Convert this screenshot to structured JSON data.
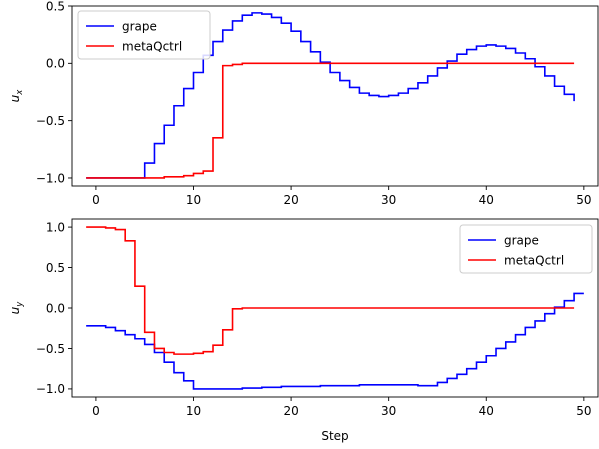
{
  "chart_data": [
    {
      "type": "line",
      "step": true,
      "ylabel": "u_x",
      "ylabel_main": "u",
      "ylabel_sub": "x",
      "xlabel": "",
      "xlim": [
        -2.45,
        51.45
      ],
      "ylim": [
        -1.07,
        0.5
      ],
      "xticks": [
        0,
        10,
        20,
        30,
        40,
        50
      ],
      "yticks": [
        -1.0,
        -0.5,
        0.0,
        0.5
      ],
      "ytick_labels": [
        "−1.0",
        "−0.5",
        "0.0",
        "0.5"
      ],
      "legend": "upper-left",
      "series": [
        {
          "name": "grape",
          "color": "#0000ff",
          "values": [
            -1.0,
            -1.0,
            -1.0,
            -1.0,
            -1.0,
            -1.0,
            -0.87,
            -0.7,
            -0.54,
            -0.37,
            -0.22,
            -0.08,
            0.07,
            0.19,
            0.29,
            0.37,
            0.42,
            0.44,
            0.43,
            0.4,
            0.35,
            0.28,
            0.19,
            0.1,
            0.01,
            -0.08,
            -0.15,
            -0.21,
            -0.26,
            -0.28,
            -0.29,
            -0.28,
            -0.26,
            -0.22,
            -0.17,
            -0.11,
            -0.04,
            0.02,
            0.08,
            0.12,
            0.15,
            0.16,
            0.15,
            0.13,
            0.09,
            0.04,
            -0.03,
            -0.11,
            -0.2,
            -0.27,
            -0.33
          ]
        },
        {
          "name": "metaQctrl",
          "color": "#ff0000",
          "values": [
            -1.0,
            -1.0,
            -1.0,
            -1.0,
            -1.0,
            -1.0,
            -1.0,
            -1.0,
            -0.99,
            -0.99,
            -0.98,
            -0.96,
            -0.94,
            -0.65,
            -0.02,
            -0.01,
            0.0,
            0.0,
            0.0,
            0.0,
            0.0,
            0.0,
            0.0,
            0.0,
            0.0,
            0.0,
            0.0,
            0.0,
            0.0,
            0.0,
            0.0,
            0.0,
            0.0,
            0.0,
            0.0,
            0.0,
            0.0,
            0.0,
            0.0,
            0.0,
            0.0,
            0.0,
            0.0,
            0.0,
            0.0,
            0.0,
            0.0,
            0.0,
            0.0,
            0.0,
            0.0
          ]
        }
      ]
    },
    {
      "type": "line",
      "step": true,
      "ylabel": "u_y",
      "ylabel_main": "u",
      "ylabel_sub": "y",
      "xlabel": "Step",
      "xlim": [
        -2.45,
        51.45
      ],
      "ylim": [
        -1.1,
        1.1
      ],
      "xticks": [
        0,
        10,
        20,
        30,
        40,
        50
      ],
      "yticks": [
        -1.0,
        -0.5,
        0.0,
        0.5,
        1.0
      ],
      "ytick_labels": [
        "−1.0",
        "−0.5",
        "0.0",
        "0.5",
        "1.0"
      ],
      "legend": "upper-right",
      "series": [
        {
          "name": "grape",
          "color": "#0000ff",
          "values": [
            -0.22,
            -0.22,
            -0.24,
            -0.28,
            -0.33,
            -0.38,
            -0.45,
            -0.55,
            -0.67,
            -0.8,
            -0.9,
            -1.0,
            -1.0,
            -1.0,
            -1.0,
            -1.0,
            -0.99,
            -0.99,
            -0.98,
            -0.98,
            -0.97,
            -0.97,
            -0.97,
            -0.97,
            -0.96,
            -0.96,
            -0.96,
            -0.96,
            -0.95,
            -0.95,
            -0.95,
            -0.95,
            -0.95,
            -0.95,
            -0.96,
            -0.96,
            -0.92,
            -0.87,
            -0.82,
            -0.75,
            -0.67,
            -0.59,
            -0.5,
            -0.42,
            -0.33,
            -0.24,
            -0.16,
            -0.07,
            0.01,
            0.09,
            0.18,
            0.18
          ]
        },
        {
          "name": "metaQctrl",
          "color": "#ff0000",
          "values": [
            1.0,
            1.0,
            0.99,
            0.97,
            0.83,
            0.27,
            -0.3,
            -0.5,
            -0.55,
            -0.57,
            -0.57,
            -0.56,
            -0.54,
            -0.46,
            -0.27,
            -0.01,
            0.0,
            0.0,
            0.0,
            0.0,
            0.0,
            0.0,
            0.0,
            0.0,
            0.0,
            0.0,
            0.0,
            0.0,
            0.0,
            0.0,
            0.0,
            0.0,
            0.0,
            0.0,
            0.0,
            0.0,
            0.0,
            0.0,
            0.0,
            0.0,
            0.0,
            0.0,
            0.0,
            0.0,
            0.0,
            0.0,
            0.0,
            0.0,
            0.0,
            0.0,
            0.0
          ]
        }
      ]
    }
  ]
}
